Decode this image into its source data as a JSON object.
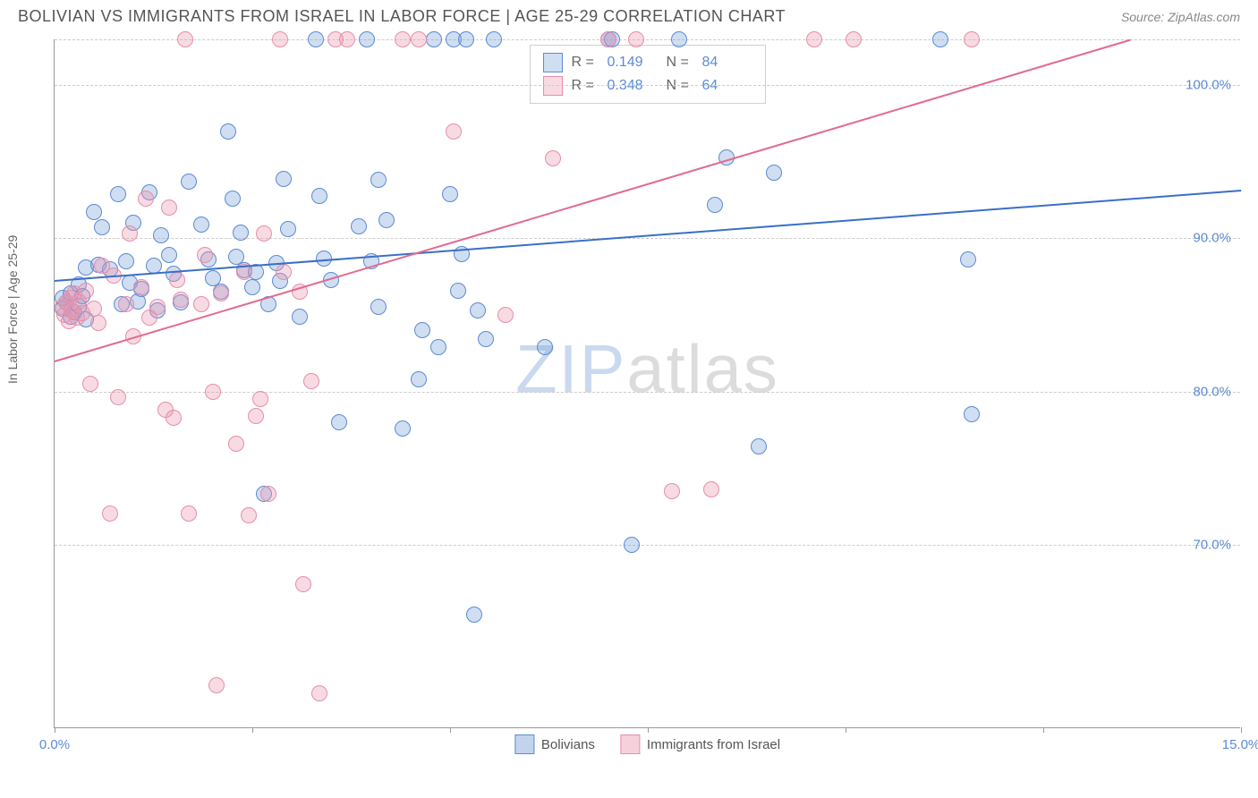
{
  "header": {
    "title": "BOLIVIAN VS IMMIGRANTS FROM ISRAEL IN LABOR FORCE | AGE 25-29 CORRELATION CHART",
    "source": "Source: ZipAtlas.com"
  },
  "chart": {
    "type": "scatter",
    "ylabel": "In Labor Force | Age 25-29",
    "xlim": [
      0,
      15
    ],
    "ylim": [
      58,
      103
    ],
    "xtick_labels": {
      "0": "0.0%",
      "15": "15.0%"
    },
    "xtick_positions": [
      0,
      2.5,
      5,
      7.5,
      10,
      12.5,
      15
    ],
    "ytick_labels": {
      "70": "70.0%",
      "80": "80.0%",
      "90": "90.0%",
      "100": "100.0%"
    },
    "grid_positions_y": [
      70,
      80,
      90,
      100,
      103
    ],
    "background_color": "#ffffff",
    "grid_color": "#cccccc",
    "axis_color": "#999999",
    "tick_label_color": "#5b8bd4",
    "label_color": "#666666",
    "marker_radius": 9,
    "marker_border_width": 1,
    "watermark": {
      "part1": "ZIP",
      "part2": "atlas"
    },
    "series": [
      {
        "name": "Bolivians",
        "fill_color": "rgba(120,160,215,0.35)",
        "stroke_color": "#5b8bd4",
        "trend_color": "#3a6fc7",
        "R": "0.149",
        "N": "84",
        "trend": {
          "x1": 0,
          "y1": 87.3,
          "x2": 15,
          "y2": 93.2
        },
        "points": [
          [
            0.1,
            85.4
          ],
          [
            0.1,
            86.1
          ],
          [
            0.15,
            85.8
          ],
          [
            0.2,
            84.9
          ],
          [
            0.2,
            86.4
          ],
          [
            0.25,
            85.2
          ],
          [
            0.3,
            87.0
          ],
          [
            0.3,
            85.6
          ],
          [
            0.35,
            86.2
          ],
          [
            0.4,
            84.7
          ],
          [
            0.4,
            88.1
          ],
          [
            0.5,
            91.7
          ],
          [
            0.55,
            88.3
          ],
          [
            0.6,
            90.7
          ],
          [
            0.7,
            88.0
          ],
          [
            0.8,
            92.9
          ],
          [
            0.85,
            85.7
          ],
          [
            0.9,
            88.5
          ],
          [
            0.95,
            87.1
          ],
          [
            1.0,
            91.0
          ],
          [
            1.05,
            85.9
          ],
          [
            1.1,
            86.7
          ],
          [
            1.2,
            93.0
          ],
          [
            1.25,
            88.2
          ],
          [
            1.3,
            85.3
          ],
          [
            1.35,
            90.2
          ],
          [
            1.45,
            88.9
          ],
          [
            1.5,
            87.7
          ],
          [
            1.6,
            85.8
          ],
          [
            1.7,
            93.7
          ],
          [
            1.85,
            90.9
          ],
          [
            1.95,
            88.6
          ],
          [
            2.0,
            87.4
          ],
          [
            2.1,
            86.5
          ],
          [
            2.2,
            97.0
          ],
          [
            2.25,
            92.6
          ],
          [
            2.3,
            88.8
          ],
          [
            2.35,
            90.4
          ],
          [
            2.4,
            87.9
          ],
          [
            2.5,
            86.8
          ],
          [
            2.55,
            87.8
          ],
          [
            2.65,
            73.3
          ],
          [
            2.7,
            85.7
          ],
          [
            2.8,
            88.4
          ],
          [
            2.85,
            87.2
          ],
          [
            2.9,
            93.9
          ],
          [
            2.95,
            90.6
          ],
          [
            3.1,
            84.9
          ],
          [
            3.3,
            103
          ],
          [
            3.35,
            92.8
          ],
          [
            3.4,
            88.7
          ],
          [
            3.5,
            87.3
          ],
          [
            3.6,
            78.0
          ],
          [
            3.85,
            90.8
          ],
          [
            3.95,
            103
          ],
          [
            4.0,
            88.5
          ],
          [
            4.1,
            93.8
          ],
          [
            4.1,
            85.5
          ],
          [
            4.2,
            91.2
          ],
          [
            4.4,
            77.6
          ],
          [
            4.6,
            80.8
          ],
          [
            4.65,
            84.0
          ],
          [
            4.8,
            103
          ],
          [
            4.85,
            82.9
          ],
          [
            5.0,
            92.9
          ],
          [
            5.05,
            103
          ],
          [
            5.1,
            86.6
          ],
          [
            5.15,
            89.0
          ],
          [
            5.2,
            103
          ],
          [
            5.3,
            65.4
          ],
          [
            5.35,
            85.3
          ],
          [
            5.45,
            83.4
          ],
          [
            5.55,
            103
          ],
          [
            6.2,
            82.9
          ],
          [
            7.0,
            103
          ],
          [
            7.05,
            103
          ],
          [
            7.3,
            70.0
          ],
          [
            7.9,
            103
          ],
          [
            8.35,
            92.2
          ],
          [
            8.5,
            95.3
          ],
          [
            8.9,
            76.4
          ],
          [
            9.1,
            94.3
          ],
          [
            11.2,
            103
          ],
          [
            11.55,
            88.6
          ],
          [
            11.6,
            78.5
          ]
        ]
      },
      {
        "name": "Immigrants from Israel",
        "fill_color": "rgba(235,150,175,0.35)",
        "stroke_color": "#e58fa9",
        "trend_color": "#e16b8f",
        "R": "0.348",
        "N": "64",
        "trend": {
          "x1": 0,
          "y1": 82.0,
          "x2": 13.6,
          "y2": 103
        },
        "points": [
          [
            0.1,
            85.5
          ],
          [
            0.12,
            85.0
          ],
          [
            0.15,
            85.8
          ],
          [
            0.18,
            84.6
          ],
          [
            0.2,
            86.1
          ],
          [
            0.22,
            85.3
          ],
          [
            0.25,
            86.4
          ],
          [
            0.28,
            84.8
          ],
          [
            0.3,
            85.9
          ],
          [
            0.35,
            85.1
          ],
          [
            0.4,
            86.6
          ],
          [
            0.45,
            80.5
          ],
          [
            0.5,
            85.4
          ],
          [
            0.55,
            84.5
          ],
          [
            0.6,
            88.2
          ],
          [
            0.7,
            72.0
          ],
          [
            0.75,
            87.6
          ],
          [
            0.8,
            79.6
          ],
          [
            0.9,
            85.7
          ],
          [
            0.95,
            90.3
          ],
          [
            1.0,
            83.6
          ],
          [
            1.1,
            86.8
          ],
          [
            1.15,
            92.6
          ],
          [
            1.2,
            84.8
          ],
          [
            1.3,
            85.5
          ],
          [
            1.4,
            78.8
          ],
          [
            1.45,
            92.0
          ],
          [
            1.5,
            78.3
          ],
          [
            1.55,
            87.3
          ],
          [
            1.6,
            86.0
          ],
          [
            1.65,
            103
          ],
          [
            1.7,
            72.0
          ],
          [
            1.85,
            85.7
          ],
          [
            1.9,
            88.9
          ],
          [
            2.0,
            80.0
          ],
          [
            2.05,
            60.8
          ],
          [
            2.1,
            86.4
          ],
          [
            2.3,
            76.6
          ],
          [
            2.4,
            87.8
          ],
          [
            2.45,
            71.9
          ],
          [
            2.55,
            78.4
          ],
          [
            2.6,
            79.5
          ],
          [
            2.65,
            90.3
          ],
          [
            2.7,
            73.3
          ],
          [
            2.85,
            103
          ],
          [
            2.9,
            87.8
          ],
          [
            3.1,
            86.5
          ],
          [
            3.15,
            67.4
          ],
          [
            3.25,
            80.7
          ],
          [
            3.35,
            60.3
          ],
          [
            3.55,
            103
          ],
          [
            3.7,
            103
          ],
          [
            4.4,
            103
          ],
          [
            4.6,
            103
          ],
          [
            5.05,
            97.0
          ],
          [
            5.7,
            85.0
          ],
          [
            6.3,
            95.2
          ],
          [
            7.0,
            103
          ],
          [
            7.35,
            103
          ],
          [
            7.8,
            73.5
          ],
          [
            8.3,
            73.6
          ],
          [
            9.6,
            103
          ],
          [
            10.1,
            103
          ],
          [
            11.6,
            103
          ]
        ]
      }
    ],
    "legend_bottom": [
      {
        "label": "Bolivians",
        "fill": "rgba(120,160,215,0.45)",
        "stroke": "#5b8bd4"
      },
      {
        "label": "Immigrants from Israel",
        "fill": "rgba(235,150,175,0.45)",
        "stroke": "#e58fa9"
      }
    ]
  }
}
